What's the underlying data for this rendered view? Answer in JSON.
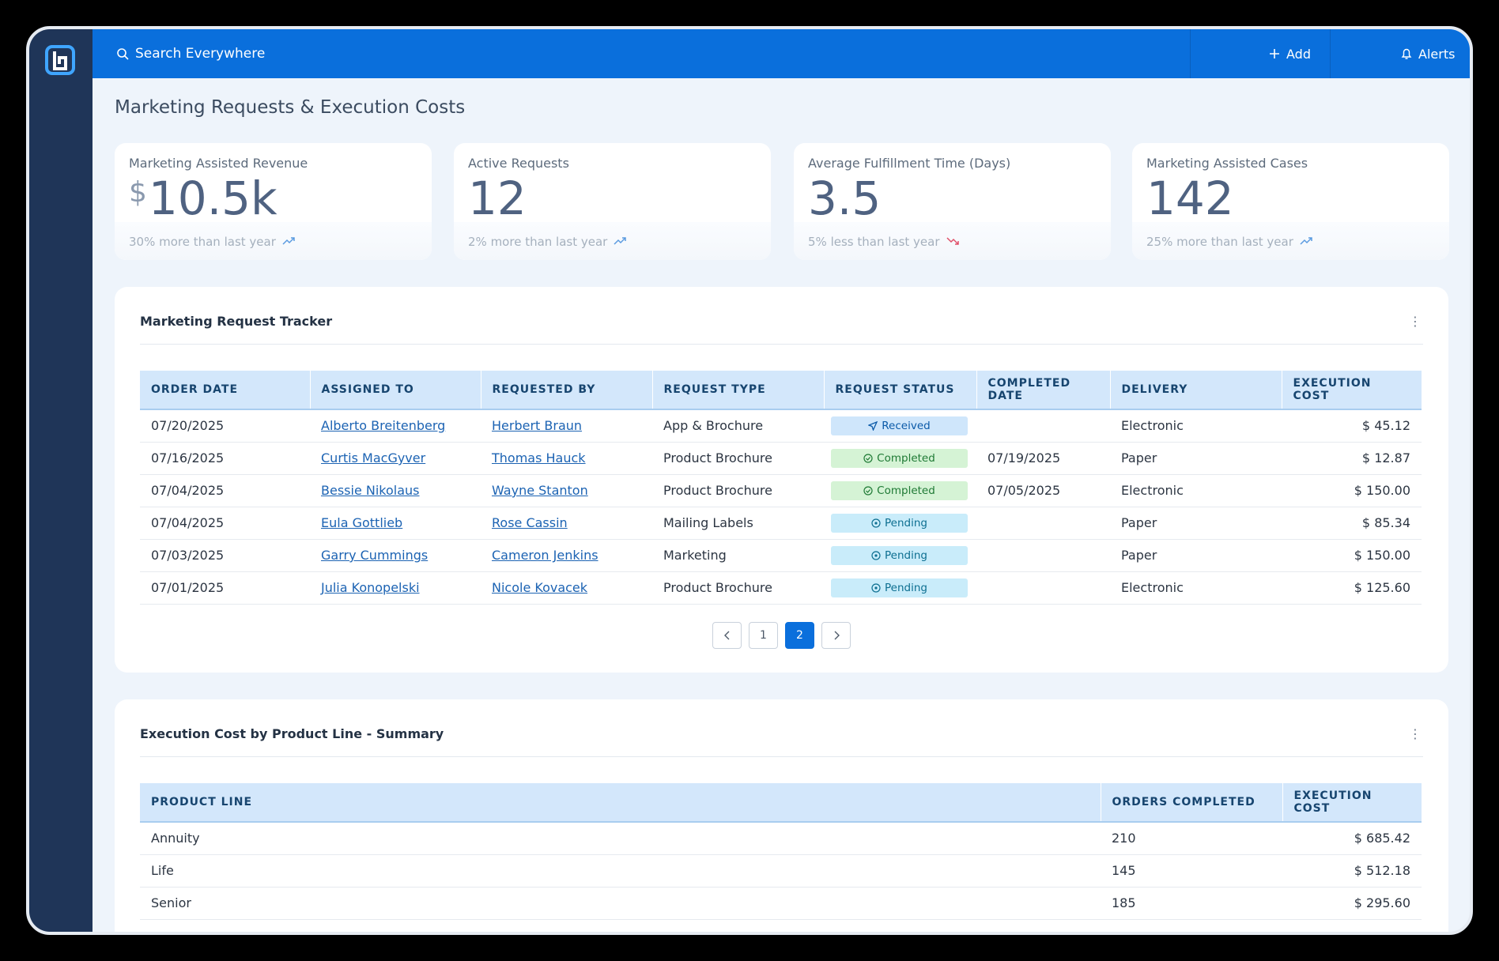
{
  "header": {
    "search_placeholder": "Search Everywhere",
    "add": "Add",
    "alerts": "Alerts"
  },
  "page_title": "Marketing Requests & Execution Costs",
  "kpis": [
    {
      "label": "Marketing Assisted Revenue",
      "prefix": "$",
      "value": "10.5k",
      "note": "30% more than last year",
      "trend": "up"
    },
    {
      "label": "Active Requests",
      "value": "12",
      "note": "2% more than last year",
      "trend": "up"
    },
    {
      "label": "Average Fulfillment Time (Days)",
      "value": "3.5",
      "note": "5% less than last year",
      "trend": "down"
    },
    {
      "label": "Marketing Assisted Cases",
      "value": "142",
      "note": "25% more than last year",
      "trend": "up"
    }
  ],
  "tracker": {
    "title": "Marketing Request Tracker",
    "columns": [
      "ORDER DATE",
      "ASSIGNED TO",
      "REQUESTED BY",
      "REQUEST TYPE",
      "REQUEST STATUS",
      "COMPLETED DATE",
      "DELIVERY",
      "EXECUTION COST"
    ],
    "link_columns": [
      1,
      2
    ],
    "status_column": 4,
    "right_columns": [
      7
    ],
    "rows": [
      [
        "07/20/2025",
        "Alberto Breitenberg",
        "Herbert Braun",
        "App & Brochure",
        {
          "label": "Received",
          "icon": "send",
          "bg": "#cfe6fb",
          "fg": "#0b5aa8"
        },
        null,
        "Electronic",
        "$ 45.12"
      ],
      [
        "07/16/2025",
        "Curtis MacGyver",
        "Thomas Hauck",
        "Product Brochure",
        {
          "label": "Completed",
          "icon": "check",
          "bg": "#d5f3d5",
          "fg": "#1f7a35"
        },
        "07/19/2025",
        "Paper",
        "$ 12.87"
      ],
      [
        "07/04/2025",
        "Bessie Nikolaus",
        "Wayne Stanton",
        "Product Brochure",
        {
          "label": "Completed",
          "icon": "check",
          "bg": "#d5f3d5",
          "fg": "#1f7a35"
        },
        "07/05/2025",
        "Electronic",
        "$ 150.00"
      ],
      [
        "07/04/2025",
        "Eula Gottlieb",
        "Rose Cassin",
        "Mailing Labels",
        {
          "label": "Pending",
          "icon": "clock",
          "bg": "#c9ecfa",
          "fg": "#0d6f91"
        },
        null,
        "Paper",
        "$ 85.34"
      ],
      [
        "07/03/2025",
        "Garry Cummings",
        "Cameron Jenkins",
        "Marketing",
        {
          "label": "Pending",
          "icon": "clock",
          "bg": "#c9ecfa",
          "fg": "#0d6f91"
        },
        null,
        "Paper",
        "$ 150.00"
      ],
      [
        "07/01/2025",
        "Julia Konopelski",
        "Nicole Kovacek",
        "Product Brochure",
        {
          "label": "Pending",
          "icon": "clock",
          "bg": "#c9ecfa",
          "fg": "#0d6f91"
        },
        null,
        "Electronic",
        "$ 125.60"
      ]
    ],
    "pages": [
      {
        "label": "1"
      },
      {
        "label": "2",
        "active": true
      }
    ]
  },
  "summary": {
    "title": "Execution Cost by Product Line - Summary",
    "columns": [
      "PRODUCT LINE",
      "ORDERS COMPLETED",
      "EXECUTION COST"
    ],
    "right_columns": [
      2
    ],
    "rows": [
      [
        "Annuity",
        "210",
        "$ 685.42"
      ],
      [
        "Life",
        "145",
        "$ 512.18"
      ],
      [
        "Senior",
        "185",
        "$ 295.60"
      ]
    ]
  }
}
